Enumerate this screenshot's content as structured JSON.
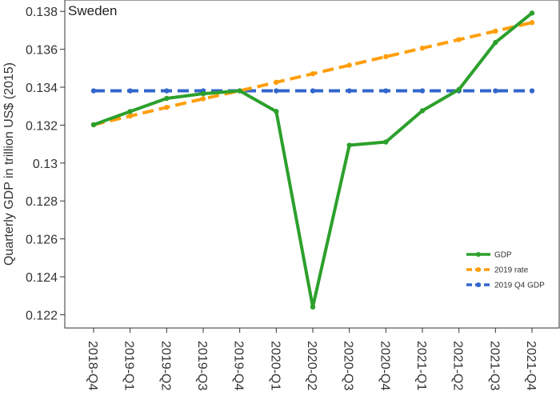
{
  "chart_data": {
    "type": "line",
    "title": "Sweden",
    "ylabel": "Quarterly GDP in trillion US$ (2015)",
    "xlabel": "",
    "categories": [
      "2018-Q4",
      "2019-Q1",
      "2019-Q2",
      "2019-Q3",
      "2019-Q4",
      "2020-Q1",
      "2020-Q2",
      "2020-Q3",
      "2020-Q4",
      "2021-Q1",
      "2021-Q2",
      "2021-Q3",
      "2021-Q4"
    ],
    "ylim": [
      0.1213,
      0.1386
    ],
    "yticks": [
      0.122,
      0.124,
      0.126,
      0.128,
      0.13,
      0.132,
      0.134,
      0.136,
      0.138
    ],
    "ytick_labels": [
      "0.122",
      "0.124",
      "0.126",
      "0.128",
      "0.13",
      "0.132",
      "0.134",
      "0.136",
      "0.138"
    ],
    "grid": false,
    "legend_position": "bottom-right",
    "series": [
      {
        "name": "GDP",
        "color": "#2ca02c",
        "dash": "solid",
        "values": [
          0.13202,
          0.13272,
          0.13341,
          0.13366,
          0.13381,
          0.13272,
          0.12241,
          0.13094,
          0.13111,
          0.13276,
          0.13388,
          0.13636,
          0.13791
        ]
      },
      {
        "name": "2019 rate",
        "color": "#ff9e0a",
        "dash": "dashed",
        "values": [
          0.13202,
          0.13248,
          0.13294,
          0.13339,
          0.13381,
          0.13426,
          0.13471,
          0.13516,
          0.13561,
          0.13606,
          0.13651,
          0.13696,
          0.13741
        ]
      },
      {
        "name": "2019 Q4 GDP",
        "color": "#3366cc",
        "dash": "dashed",
        "values": [
          0.13381,
          0.13381,
          0.13381,
          0.13381,
          0.13381,
          0.13381,
          0.13381,
          0.13381,
          0.13381,
          0.13381,
          0.13381,
          0.13381,
          0.13381
        ]
      }
    ]
  }
}
